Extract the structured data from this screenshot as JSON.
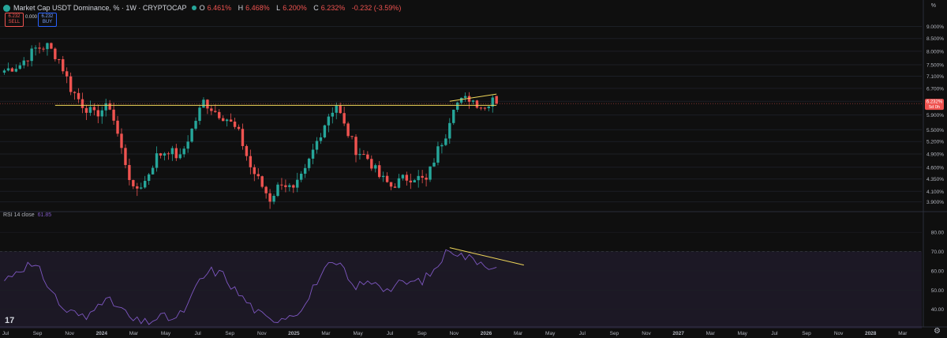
{
  "header": {
    "title": "Market Cap USDT Dominance, % · 1W · CRYPTOCAP",
    "ohlc": [
      {
        "k": "O",
        "v": "6.461%"
      },
      {
        "k": "H",
        "v": "6.468%"
      },
      {
        "k": "L",
        "v": "6.200%"
      },
      {
        "k": "C",
        "v": "6.232%"
      },
      {
        "k": "",
        "v": "-0.232 (-3.59%)"
      }
    ],
    "sell_price": "6.232",
    "sell_label": "SELL",
    "spread": "0.000",
    "buy_price": "6.232",
    "buy_label": "BUY",
    "scale_unit": "%"
  },
  "rsi_header": {
    "name": "RSI 14 close",
    "value": "61.85"
  },
  "price_badge": {
    "price": "6.232%",
    "countdown": "5d 0h"
  },
  "colors": {
    "up": "#26a69a",
    "down": "#ef5350",
    "rsi": "#7e57c2",
    "trendline": "#f0d75a"
  },
  "icons": [
    "tradingview-logo-icon",
    "settings-gear-icon"
  ],
  "chart_data": [
    {
      "type": "candlestick",
      "title": "Market Cap USDT Dominance, %",
      "interval": "1W",
      "scale": "log",
      "ylabel": "%",
      "y_ticks": [
        3.9,
        4.1,
        4.35,
        4.6,
        4.9,
        5.2,
        5.5,
        5.9,
        6.3,
        6.7,
        7.1,
        7.5,
        8.0,
        8.5,
        9.0
      ],
      "y_tick_labels": [
        "3.900%",
        "4.100%",
        "4.350%",
        "4.600%",
        "4.900%",
        "5.200%",
        "5.500%",
        "5.900%",
        "6.300%",
        "6.700%",
        "7.100%",
        "7.500%",
        "8.000%",
        "8.500%",
        "9.000%"
      ],
      "x_labels": [
        "Jul",
        "Sep",
        "Nov",
        "2024",
        "Mar",
        "May",
        "Jul",
        "Sep",
        "Nov",
        "2025",
        "Mar",
        "May",
        "Jul",
        "Sep",
        "Nov",
        "2026",
        "Mar",
        "May",
        "Jul",
        "Sep",
        "Nov",
        "2027",
        "Mar",
        "May",
        "Jul",
        "Sep",
        "Nov",
        "2028",
        "Mar"
      ],
      "bold_x_labels": [
        "2024",
        "2025",
        "2026",
        "2027",
        "2028"
      ],
      "close_anchors": [
        [
          0,
          7.3
        ],
        [
          4,
          7.5
        ],
        [
          8,
          8.1
        ],
        [
          11,
          8.2
        ],
        [
          14,
          7.7
        ],
        [
          17,
          6.7
        ],
        [
          20,
          6.2
        ],
        [
          23,
          5.9
        ],
        [
          25,
          6.05
        ],
        [
          27,
          6.15
        ],
        [
          30,
          5.0
        ],
        [
          33,
          4.1
        ],
        [
          36,
          4.3
        ],
        [
          39,
          4.85
        ],
        [
          42,
          5.0
        ],
        [
          45,
          4.8
        ],
        [
          48,
          5.5
        ],
        [
          51,
          6.3
        ],
        [
          54,
          6.0
        ],
        [
          57,
          5.8
        ],
        [
          60,
          5.4
        ],
        [
          63,
          4.6
        ],
        [
          66,
          4.2
        ],
        [
          68,
          3.95
        ],
        [
          71,
          4.3
        ],
        [
          74,
          4.1
        ],
        [
          77,
          4.5
        ],
        [
          80,
          5.2
        ],
        [
          83,
          5.9
        ],
        [
          85,
          6.2
        ],
        [
          87,
          5.6
        ],
        [
          90,
          5.0
        ],
        [
          93,
          4.8
        ],
        [
          96,
          4.4
        ],
        [
          99,
          4.2
        ],
        [
          102,
          4.35
        ],
        [
          105,
          4.4
        ],
        [
          108,
          4.3
        ],
        [
          111,
          5.0
        ],
        [
          113,
          5.4
        ],
        [
          115,
          6.2
        ],
        [
          117,
          6.3
        ],
        [
          119,
          6.4
        ],
        [
          121,
          6.25
        ],
        [
          123,
          6.1
        ],
        [
          125,
          6.46
        ],
        [
          126,
          6.232
        ]
      ],
      "last_candle": {
        "open": 6.461,
        "high": 6.468,
        "low": 6.2,
        "close": 6.232
      },
      "last_price_line": 6.232,
      "annotations": [
        {
          "type": "horizontal_line",
          "y": 6.18,
          "x_start": 13,
          "x_end": 126
        },
        {
          "type": "trend_line",
          "points": [
            [
              114,
              6.3
            ],
            [
              126,
              6.52
            ]
          ]
        }
      ]
    },
    {
      "type": "line",
      "title": "RSI 14 close",
      "series": [
        {
          "name": "RSI 14 close",
          "color": "#7e57c2"
        }
      ],
      "ylim": [
        30,
        85
      ],
      "y_ticks": [
        40,
        50,
        60,
        70,
        80
      ],
      "y_tick_labels": [
        "40.00",
        "50.00",
        "60.00",
        "70.00",
        "80.00"
      ],
      "band": [
        30,
        70
      ],
      "last_value": 61.85,
      "anchors": [
        [
          0,
          55
        ],
        [
          3,
          60
        ],
        [
          6,
          63
        ],
        [
          9,
          60
        ],
        [
          12,
          50
        ],
        [
          15,
          40
        ],
        [
          18,
          38
        ],
        [
          21,
          35
        ],
        [
          24,
          45
        ],
        [
          27,
          44
        ],
        [
          30,
          40
        ],
        [
          33,
          34
        ],
        [
          36,
          33
        ],
        [
          40,
          36
        ],
        [
          44,
          35
        ],
        [
          47,
          42
        ],
        [
          50,
          55
        ],
        [
          53,
          60
        ],
        [
          56,
          58
        ],
        [
          59,
          50
        ],
        [
          62,
          44
        ],
        [
          65,
          38
        ],
        [
          68,
          34
        ],
        [
          71,
          36
        ],
        [
          74,
          38
        ],
        [
          77,
          42
        ],
        [
          80,
          55
        ],
        [
          83,
          62
        ],
        [
          86,
          63
        ],
        [
          89,
          52
        ],
        [
          92,
          53
        ],
        [
          95,
          55
        ],
        [
          98,
          50
        ],
        [
          101,
          53
        ],
        [
          104,
          54
        ],
        [
          107,
          55
        ],
        [
          110,
          60
        ],
        [
          113,
          69
        ],
        [
          114,
          72
        ],
        [
          117,
          68
        ],
        [
          120,
          66
        ],
        [
          122,
          65
        ],
        [
          124,
          63
        ],
        [
          126,
          61.85
        ]
      ],
      "annotations": [
        {
          "type": "trend_line",
          "points": [
            [
              114,
              72
            ],
            [
              133,
              63
            ]
          ]
        }
      ]
    }
  ]
}
